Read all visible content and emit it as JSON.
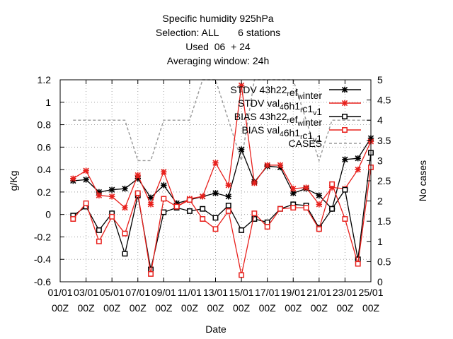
{
  "chart_data": {
    "type": "line",
    "title_lines": [
      "Specific humidity 925hPa",
      "Selection: ALL       6 stations",
      "Used  06  + 24",
      "Averaging window: 24h"
    ],
    "xlabel": "Date",
    "ylabel": "g/Kg",
    "y2label": "No cases",
    "grid": true,
    "legend_position": "top-right",
    "x_ticks": [
      [
        "01/01",
        "00Z"
      ],
      [
        "03/01",
        "00Z"
      ],
      [
        "05/01",
        "00Z"
      ],
      [
        "07/01",
        "00Z"
      ],
      [
        "09/01",
        "00Z"
      ],
      [
        "11/01",
        "00Z"
      ],
      [
        "13/01",
        "00Z"
      ],
      [
        "15/01",
        "00Z"
      ],
      [
        "17/01",
        "00Z"
      ],
      [
        "19/01",
        "00Z"
      ],
      [
        "21/01",
        "00Z"
      ],
      [
        "23/01",
        "00Z"
      ],
      [
        "25/01",
        "00Z"
      ]
    ],
    "x_range_days": [
      1,
      25
    ],
    "ylim": [
      -0.6,
      1.2
    ],
    "y_ticks": [
      "-0.6",
      "-0.4",
      "-0.2",
      "0",
      "0.2",
      "0.4",
      "0.6",
      "0.8",
      "1",
      "1.2"
    ],
    "y2lim": [
      0,
      5
    ],
    "y2_ticks": [
      "0",
      "0.5",
      "1",
      "1.5",
      "2",
      "2.5",
      "3",
      "3.5",
      "4",
      "4.5",
      "5"
    ],
    "x_days": [
      2,
      3,
      4,
      5,
      6,
      7,
      8,
      9,
      10,
      11,
      12,
      13,
      14,
      15,
      16,
      17,
      18,
      19,
      20,
      21,
      22,
      23,
      24,
      25
    ],
    "series": [
      {
        "name": "STDV 43h22_r ef_w inter",
        "label_parts": [
          [
            "STDV 43h22",
            ""
          ],
          [
            "r",
            "sub"
          ],
          [
            "ef",
            ""
          ],
          [
            "w",
            "sub"
          ],
          [
            "inter",
            ""
          ]
        ],
        "color": "#000000",
        "marker": "star",
        "dash": "",
        "axis": "y1",
        "values": [
          0.3,
          0.31,
          0.2,
          0.22,
          0.23,
          0.32,
          0.15,
          0.26,
          0.1,
          0.13,
          0.16,
          0.19,
          0.16,
          0.58,
          0.29,
          0.43,
          0.42,
          0.19,
          0.23,
          0.17,
          0.05,
          0.49,
          0.5,
          0.68
        ]
      },
      {
        "name": "STDV val_4 6h1_r c1_v 1",
        "label_parts": [
          [
            "STDV val",
            ""
          ],
          [
            "4",
            "sub"
          ],
          [
            "6h1",
            ""
          ],
          [
            "r",
            "sub"
          ],
          [
            "c1",
            ""
          ],
          [
            "v",
            "sub"
          ],
          [
            "1",
            ""
          ]
        ],
        "color": "#e8201c",
        "marker": "star",
        "dash": "",
        "axis": "y1",
        "values": [
          0.32,
          0.39,
          0.17,
          0.16,
          0.06,
          0.35,
          0.09,
          0.38,
          0.07,
          0.14,
          0.16,
          0.46,
          0.26,
          1.15,
          0.28,
          0.44,
          0.44,
          0.23,
          0.24,
          0.09,
          0.24,
          0.23,
          0.4,
          0.65
        ]
      },
      {
        "name": "BIAS 43h22_r ef_w inter",
        "label_parts": [
          [
            "BIAS 43h22",
            ""
          ],
          [
            "r",
            "sub"
          ],
          [
            "ef",
            ""
          ],
          [
            "w",
            "sub"
          ],
          [
            "inter",
            ""
          ]
        ],
        "color": "#000000",
        "marker": "square",
        "dash": "",
        "axis": "y1",
        "values": [
          -0.01,
          0.07,
          -0.14,
          0.01,
          -0.35,
          0.17,
          -0.49,
          0.02,
          0.06,
          0.03,
          0.05,
          -0.03,
          0.08,
          -0.14,
          -0.04,
          -0.07,
          0.05,
          0.09,
          0.08,
          -0.12,
          0.05,
          0.22,
          -0.4,
          0.55
        ]
      },
      {
        "name": "BIAS val_4 6h1_r c1_v 1",
        "label_parts": [
          [
            "BIAS val",
            ""
          ],
          [
            "4",
            "sub"
          ],
          [
            "6h1",
            ""
          ],
          [
            "r",
            "sub"
          ],
          [
            "c1",
            ""
          ],
          [
            "v",
            "sub"
          ],
          [
            "1",
            ""
          ]
        ],
        "color": "#e8201c",
        "marker": "square",
        "dash": "",
        "axis": "y1",
        "values": [
          -0.04,
          0.1,
          -0.24,
          -0.02,
          -0.17,
          0.19,
          -0.53,
          0.14,
          0.07,
          0.13,
          -0.04,
          -0.13,
          0.03,
          -0.54,
          0.01,
          -0.11,
          0.05,
          0.06,
          0.06,
          -0.13,
          0.27,
          -0.04,
          -0.44,
          0.42
        ]
      },
      {
        "name": "CASES",
        "label_parts": [
          [
            "CASES",
            ""
          ]
        ],
        "color": "#999999",
        "marker": "none",
        "dash": "4,3",
        "axis": "y2",
        "values": [
          4,
          4,
          4,
          4,
          4,
          3,
          3,
          4,
          4,
          4,
          5,
          5,
          4,
          3,
          5,
          5,
          5,
          5,
          4,
          3,
          4,
          4,
          4,
          4
        ]
      }
    ]
  }
}
